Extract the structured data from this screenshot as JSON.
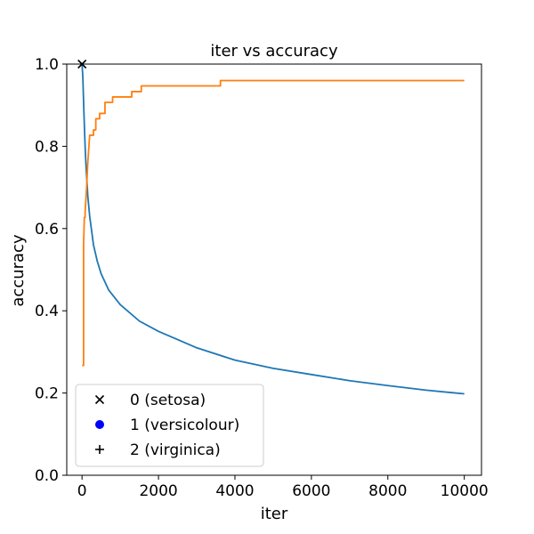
{
  "chart_data": {
    "type": "line",
    "title": "iter vs accuracy",
    "xlabel": "iter",
    "ylabel": "accuracy",
    "xlim": [
      -400,
      10450
    ],
    "ylim": [
      0,
      1.0
    ],
    "xticks": [
      0,
      2000,
      4000,
      6000,
      8000,
      10000
    ],
    "yticks": [
      0.0,
      0.2,
      0.4,
      0.6,
      0.8,
      1.0
    ],
    "grid": false,
    "legend_position": "lower-left",
    "legend": [
      {
        "label": "0 (setosa)",
        "marker": "x",
        "color": "#000000"
      },
      {
        "label": "1 (versicolour)",
        "marker": "circle",
        "color": "#0000ff"
      },
      {
        "label": "2 (virginica)",
        "marker": "plus",
        "color": "#000000"
      }
    ],
    "series": [
      {
        "color": "#1f77b4",
        "x": [
          0,
          20,
          50,
          80,
          100,
          150,
          200,
          300,
          400,
          500,
          700,
          1000,
          1500,
          2000,
          3000,
          4000,
          5000,
          6000,
          7000,
          8000,
          9000,
          10000
        ],
        "y": [
          1.0,
          0.97,
          0.88,
          0.8,
          0.76,
          0.68,
          0.63,
          0.56,
          0.52,
          0.49,
          0.45,
          0.415,
          0.375,
          0.35,
          0.31,
          0.28,
          0.26,
          0.245,
          0.23,
          0.218,
          0.207,
          0.198
        ]
      },
      {
        "color": "#ff7f0e",
        "x": [
          0,
          40,
          40,
          60,
          80,
          80,
          120,
          150,
          180,
          200,
          240,
          260,
          300,
          300,
          360,
          360,
          460,
          460,
          600,
          600,
          720,
          720,
          800,
          800,
          1300,
          1300,
          1550,
          1550,
          3620,
          3620,
          10000
        ],
        "y": [
          0.267,
          0.267,
          0.56,
          0.627,
          0.627,
          0.64,
          0.7,
          0.76,
          0.8,
          0.827,
          0.827,
          0.827,
          0.827,
          0.84,
          0.84,
          0.867,
          0.867,
          0.88,
          0.88,
          0.907,
          0.907,
          0.907,
          0.907,
          0.92,
          0.92,
          0.933,
          0.933,
          0.947,
          0.947,
          0.96,
          0.96
        ]
      }
    ],
    "markers": [
      {
        "x": 0,
        "y": 1.0,
        "marker": "x",
        "color": "#000000"
      }
    ]
  }
}
